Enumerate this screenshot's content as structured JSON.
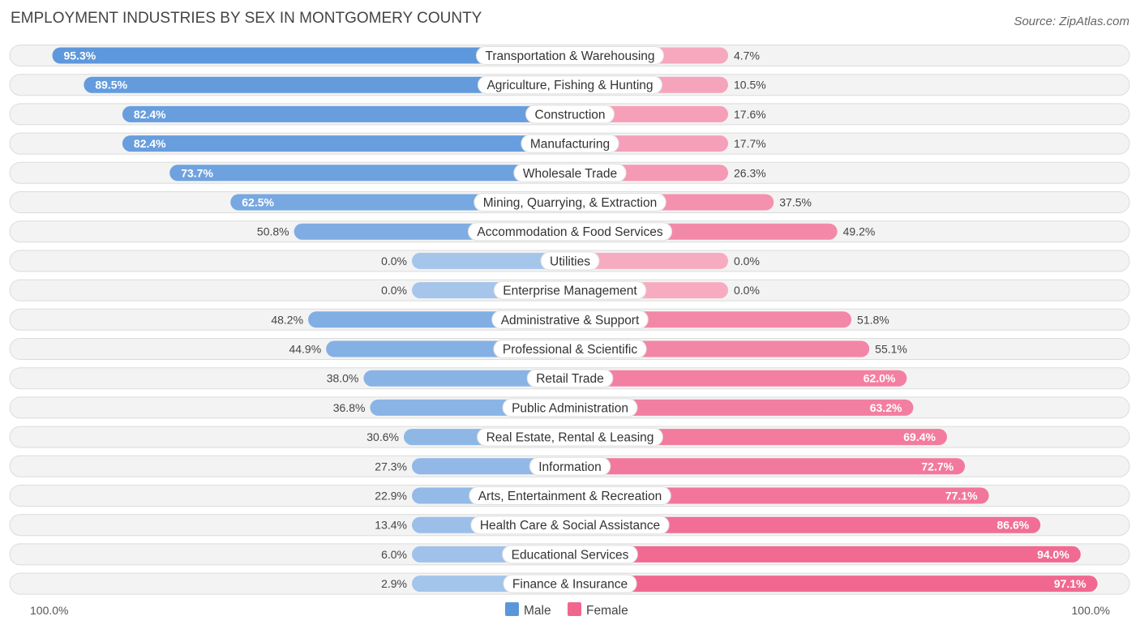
{
  "chart_data": {
    "type": "bar",
    "orientation": "horizontal-diverging",
    "title": "EMPLOYMENT INDUSTRIES BY SEX IN MONTGOMERY COUNTY",
    "source": "Source: ZipAtlas.com",
    "categories": [
      "Transportation & Warehousing",
      "Agriculture, Fishing & Hunting",
      "Construction",
      "Manufacturing",
      "Wholesale Trade",
      "Mining, Quarrying, & Extraction",
      "Accommodation & Food Services",
      "Utilities",
      "Enterprise Management",
      "Administrative & Support",
      "Professional & Scientific",
      "Retail Trade",
      "Public Administration",
      "Real Estate, Rental & Leasing",
      "Information",
      "Arts, Entertainment & Recreation",
      "Health Care & Social Assistance",
      "Educational Services",
      "Finance & Insurance"
    ],
    "series": [
      {
        "name": "Male",
        "color": "#5b96db",
        "values": [
          95.3,
          89.5,
          82.4,
          82.4,
          73.7,
          62.5,
          50.8,
          0.0,
          0.0,
          48.2,
          44.9,
          38.0,
          36.8,
          30.6,
          27.3,
          22.9,
          13.4,
          6.0,
          2.9
        ],
        "labels": [
          "95.3%",
          "89.5%",
          "82.4%",
          "82.4%",
          "73.7%",
          "62.5%",
          "50.8%",
          "0.0%",
          "0.0%",
          "48.2%",
          "44.9%",
          "38.0%",
          "36.8%",
          "30.6%",
          "27.3%",
          "22.9%",
          "13.4%",
          "6.0%",
          "2.9%"
        ]
      },
      {
        "name": "Female",
        "color": "#f0668f",
        "values": [
          4.7,
          10.5,
          17.6,
          17.7,
          26.3,
          37.5,
          49.2,
          0.0,
          0.0,
          51.8,
          55.1,
          62.0,
          63.2,
          69.4,
          72.7,
          77.1,
          86.6,
          94.0,
          97.1
        ],
        "labels": [
          "4.7%",
          "10.5%",
          "17.6%",
          "17.7%",
          "26.3%",
          "37.5%",
          "49.2%",
          "0.0%",
          "0.0%",
          "51.8%",
          "55.1%",
          "62.0%",
          "63.2%",
          "69.4%",
          "72.7%",
          "77.1%",
          "86.6%",
          "94.0%",
          "97.1%"
        ]
      }
    ],
    "axis": {
      "left_label": "100.0%",
      "right_label": "100.0%",
      "range": [
        0,
        100
      ]
    },
    "legend": {
      "position": "bottom-center",
      "items": [
        "Male",
        "Female"
      ]
    }
  }
}
